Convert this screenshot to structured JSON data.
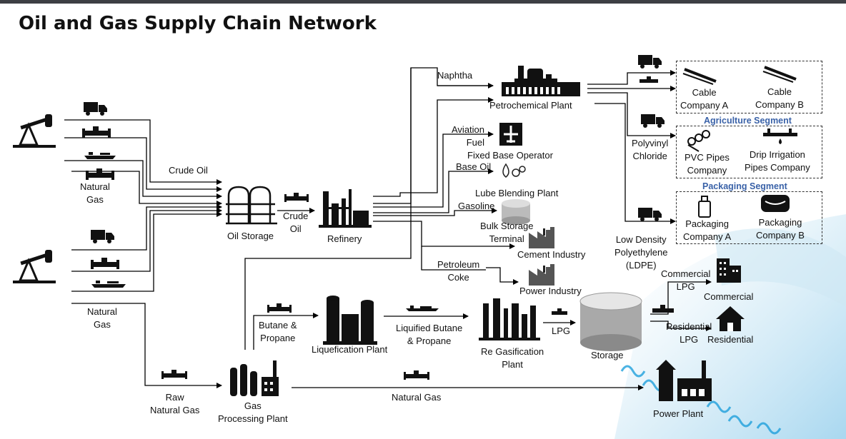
{
  "title": "Oil and Gas Supply Chain Network",
  "labels": {
    "crude_oil": "Crude Oil",
    "natural_gas_top": "Natural\nGas",
    "natural_gas_bottom": "Natural\nGas",
    "oil_storage": "Oil Storage",
    "crude_oil_2": "Crude\nOil",
    "refinery": "Refinery",
    "naphtha": "Naphtha",
    "petrochemical_plant": "Petrochemical Plant",
    "aviation_fuel": "Aviation\nFuel",
    "fixed_base_operator": "Fixed Base Operator",
    "base_oil": "Base Oil",
    "lube_blending_plant": "Lube Blending Plant",
    "gasoline": "Gasoline",
    "bulk_storage_terminal": "Bulk Storage\nTerminal",
    "cement_industry": "Cement Industry",
    "petroleum_coke": "Petroleum\nCoke",
    "power_industry": "Power Industry",
    "polyvinyl_chloride": "Polyvinyl\nChloride",
    "ldpe": "Low Density\nPolyethylene\n(LDPE)",
    "cable_company_a": "Cable\nCompany A",
    "cable_company_b": "Cable\nCompany B",
    "agriculture_segment": "Agriculture  Segment",
    "pvc_pipes_company": "PVC Pipes\nCompany",
    "drip_irrigation": "Drip Irrigation\nPipes Company",
    "packaging_segment": "Packaging Segment",
    "packaging_company_a": "Packaging\nCompany A",
    "packaging_company_b": "Packaging\nCompany B",
    "butane_propane": "Butane &\nPropane",
    "liquefication_plant": "Liquefication Plant",
    "liquified_butane_propane": "Liquified Butane\n& Propane",
    "re_gasification_plant": "Re Gasification\nPlant",
    "lpg": "LPG",
    "storage": "Storage",
    "commercial_lpg": "Commercial\nLPG",
    "commercial": "Commercial",
    "residential_lpg": "Residential\nLPG",
    "residential": "Residential",
    "raw_natural_gas": "Raw\nNatural Gas",
    "gas_processing_plant": "Gas\nProcessing Plant",
    "natural_gas_line": "Natural Gas",
    "power_plant": "Power Plant"
  },
  "icons": [
    "oil-pump-icon",
    "truck-icon",
    "pipeline-icon",
    "tanker-ship-icon",
    "tank-icon",
    "refinery-icon",
    "petrochemical-plant-icon",
    "airplane-icon",
    "oil-drop-gears-icon",
    "storage-tank-icon",
    "cement-factory-icon",
    "cable-icon",
    "pvc-pipe-icon",
    "drip-irrigation-icon",
    "bottle-icon",
    "package-icon",
    "commercial-building-icon",
    "house-icon",
    "power-plant-icon",
    "liquefication-plant-icon",
    "regasification-plant-icon",
    "gas-processing-plant-icon"
  ],
  "colors": {
    "segment_heading": "#3a62a8",
    "top_bar": "#3d3f44"
  }
}
